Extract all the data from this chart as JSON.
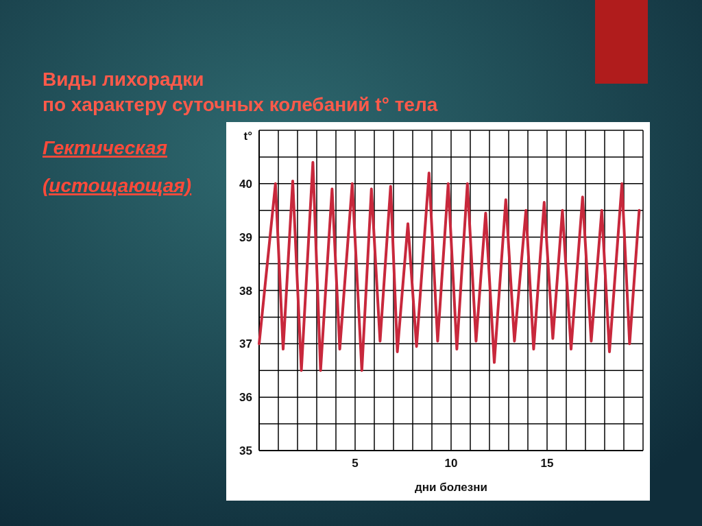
{
  "chart_data": {
    "type": "line",
    "title": "Виды лихорадки\nпо характеру суточных колебаний t° тела",
    "subtitle": "Гектическая\n(истощающая)",
    "xlabel": "дни болезни",
    "ylabel": "t°",
    "x": [
      0,
      0.85,
      1.25,
      1.75,
      2.2,
      2.8,
      3.2,
      3.8,
      4.2,
      4.85,
      5.35,
      5.85,
      6.3,
      6.85,
      7.2,
      7.75,
      8.2,
      8.85,
      9.3,
      9.85,
      10.3,
      10.85,
      11.3,
      11.8,
      12.25,
      12.85,
      13.3,
      13.9,
      14.3,
      14.85,
      15.3,
      15.8,
      16.25,
      16.85,
      17.3,
      17.85,
      18.25,
      18.9,
      19.3,
      19.8
    ],
    "series": [
      {
        "color": "#c8283c",
        "values": [
          37,
          40,
          36.9,
          40.05,
          36.5,
          40.4,
          36.5,
          39.9,
          36.9,
          40,
          36.5,
          39.9,
          37.05,
          39.95,
          36.85,
          39.25,
          36.95,
          40.2,
          37.05,
          40,
          36.9,
          40,
          37.05,
          39.45,
          36.65,
          39.7,
          37.05,
          39.5,
          36.9,
          39.65,
          37.1,
          39.5,
          36.9,
          39.75,
          37.05,
          39.5,
          36.85,
          40,
          37,
          39.5
        ]
      }
    ],
    "xlim": [
      0,
      20
    ],
    "ylim": [
      35,
      41
    ],
    "xticks": [
      {
        "value": 0,
        "label": null
      },
      {
        "value": 1,
        "label": null
      },
      {
        "value": 2,
        "label": null
      },
      {
        "value": 3,
        "label": null
      },
      {
        "value": 4,
        "label": null
      },
      5,
      {
        "value": 6,
        "label": null
      },
      {
        "value": 7,
        "label": null
      },
      {
        "value": 8,
        "label": null
      },
      {
        "value": 9,
        "label": null
      },
      10,
      {
        "value": 11,
        "label": null
      },
      {
        "value": 12,
        "label": null
      },
      {
        "value": 13,
        "label": null
      },
      {
        "value": 14,
        "label": null
      },
      15,
      {
        "value": 16,
        "label": null
      },
      {
        "value": 17,
        "label": null
      },
      {
        "value": 18,
        "label": null
      },
      {
        "value": 19,
        "label": null
      },
      {
        "value": 20,
        "label": null
      }
    ],
    "yticks": [
      35,
      {
        "value": 35.5,
        "label": null
      },
      36,
      {
        "value": 36.5,
        "label": null
      },
      37,
      {
        "value": 37.5,
        "label": null
      },
      38,
      {
        "value": 38.5,
        "label": null
      },
      39,
      {
        "value": 39.5,
        "label": null
      },
      40,
      {
        "value": 40.5,
        "label": null
      },
      {
        "value": 41,
        "label": null
      }
    ],
    "grid": true,
    "line_style": "solid",
    "marker": "none"
  }
}
